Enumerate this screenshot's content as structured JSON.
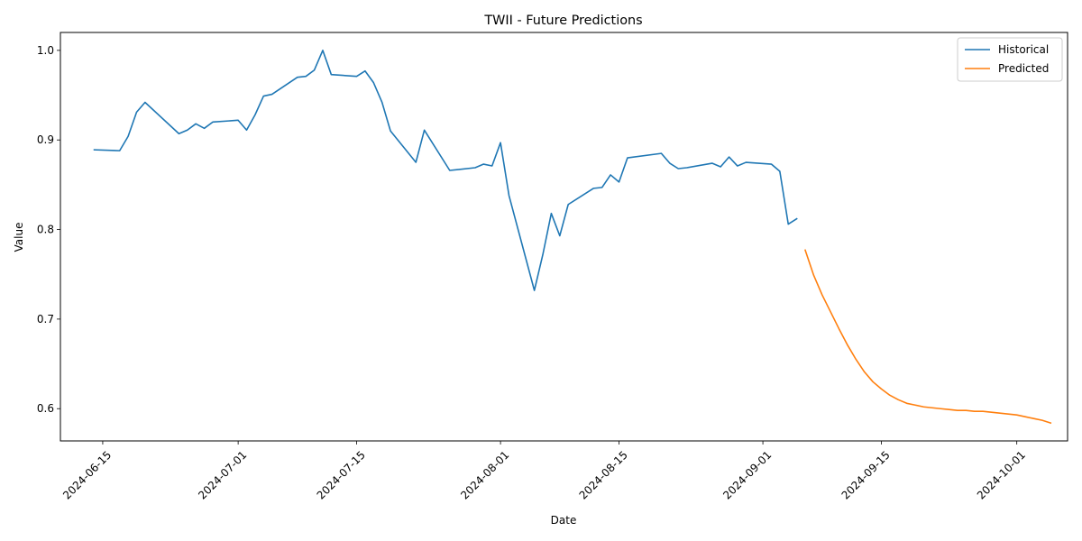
{
  "chart_data": {
    "type": "line",
    "title": "TWII - Future Predictions",
    "xlabel": "Date",
    "ylabel": "Value",
    "xlim": [
      "2024-06-10",
      "2024-10-07"
    ],
    "ylim": [
      0.564,
      1.02
    ],
    "x_ticks": [
      "2024-06-15",
      "2024-07-01",
      "2024-07-15",
      "2024-08-01",
      "2024-08-15",
      "2024-09-01",
      "2024-09-15",
      "2024-10-01"
    ],
    "y_ticks": [
      "0.6",
      "0.7",
      "0.8",
      "0.9",
      "1.0"
    ],
    "grid": false,
    "legend_position": "top-right",
    "series": [
      {
        "name": "Historical",
        "color": "#1f77b4",
        "points": [
          [
            "2024-06-14",
            0.889
          ],
          [
            "2024-06-17",
            0.888
          ],
          [
            "2024-06-18",
            0.904
          ],
          [
            "2024-06-19",
            0.931
          ],
          [
            "2024-06-20",
            0.942
          ],
          [
            "2024-06-24",
            0.907
          ],
          [
            "2024-06-25",
            0.911
          ],
          [
            "2024-06-26",
            0.918
          ],
          [
            "2024-06-27",
            0.913
          ],
          [
            "2024-06-28",
            0.92
          ],
          [
            "2024-07-01",
            0.922
          ],
          [
            "2024-07-02",
            0.911
          ],
          [
            "2024-07-03",
            0.928
          ],
          [
            "2024-07-04",
            0.949
          ],
          [
            "2024-07-05",
            0.951
          ],
          [
            "2024-07-08",
            0.97
          ],
          [
            "2024-07-09",
            0.971
          ],
          [
            "2024-07-10",
            0.978
          ],
          [
            "2024-07-11",
            1.0
          ],
          [
            "2024-07-12",
            0.973
          ],
          [
            "2024-07-15",
            0.971
          ],
          [
            "2024-07-16",
            0.977
          ],
          [
            "2024-07-17",
            0.964
          ],
          [
            "2024-07-18",
            0.942
          ],
          [
            "2024-07-19",
            0.91
          ],
          [
            "2024-07-22",
            0.875
          ],
          [
            "2024-07-23",
            0.911
          ],
          [
            "2024-07-26",
            0.866
          ],
          [
            "2024-07-29",
            0.869
          ],
          [
            "2024-07-30",
            0.873
          ],
          [
            "2024-07-31",
            0.871
          ],
          [
            "2024-08-01",
            0.897
          ],
          [
            "2024-08-02",
            0.838
          ],
          [
            "2024-08-05",
            0.732
          ],
          [
            "2024-08-06",
            0.772
          ],
          [
            "2024-08-07",
            0.818
          ],
          [
            "2024-08-08",
            0.793
          ],
          [
            "2024-08-09",
            0.828
          ],
          [
            "2024-08-12",
            0.846
          ],
          [
            "2024-08-13",
            0.847
          ],
          [
            "2024-08-14",
            0.861
          ],
          [
            "2024-08-15",
            0.853
          ],
          [
            "2024-08-16",
            0.88
          ],
          [
            "2024-08-20",
            0.885
          ],
          [
            "2024-08-21",
            0.874
          ],
          [
            "2024-08-22",
            0.868
          ],
          [
            "2024-08-23",
            0.869
          ],
          [
            "2024-08-26",
            0.874
          ],
          [
            "2024-08-27",
            0.87
          ],
          [
            "2024-08-28",
            0.881
          ],
          [
            "2024-08-29",
            0.871
          ],
          [
            "2024-08-30",
            0.875
          ],
          [
            "2024-09-02",
            0.873
          ],
          [
            "2024-09-03",
            0.865
          ],
          [
            "2024-09-04",
            0.806
          ],
          [
            "2024-09-05",
            0.812
          ]
        ]
      },
      {
        "name": "Predicted",
        "color": "#ff7f0e",
        "points": [
          [
            "2024-09-06",
            0.777
          ],
          [
            "2024-09-07",
            0.749
          ],
          [
            "2024-09-08",
            0.727
          ],
          [
            "2024-09-09",
            0.708
          ],
          [
            "2024-09-10",
            0.689
          ],
          [
            "2024-09-11",
            0.671
          ],
          [
            "2024-09-12",
            0.655
          ],
          [
            "2024-09-13",
            0.641
          ],
          [
            "2024-09-14",
            0.63
          ],
          [
            "2024-09-15",
            0.622
          ],
          [
            "2024-09-16",
            0.615
          ],
          [
            "2024-09-17",
            0.61
          ],
          [
            "2024-09-18",
            0.606
          ],
          [
            "2024-09-19",
            0.604
          ],
          [
            "2024-09-20",
            0.602
          ],
          [
            "2024-09-21",
            0.601
          ],
          [
            "2024-09-22",
            0.6
          ],
          [
            "2024-09-23",
            0.599
          ],
          [
            "2024-09-24",
            0.598
          ],
          [
            "2024-09-25",
            0.598
          ],
          [
            "2024-09-26",
            0.597
          ],
          [
            "2024-09-27",
            0.597
          ],
          [
            "2024-09-28",
            0.596
          ],
          [
            "2024-09-29",
            0.595
          ],
          [
            "2024-09-30",
            0.594
          ],
          [
            "2024-10-01",
            0.593
          ],
          [
            "2024-10-02",
            0.591
          ],
          [
            "2024-10-03",
            0.589
          ],
          [
            "2024-10-04",
            0.587
          ],
          [
            "2024-10-05",
            0.584
          ]
        ]
      }
    ]
  }
}
